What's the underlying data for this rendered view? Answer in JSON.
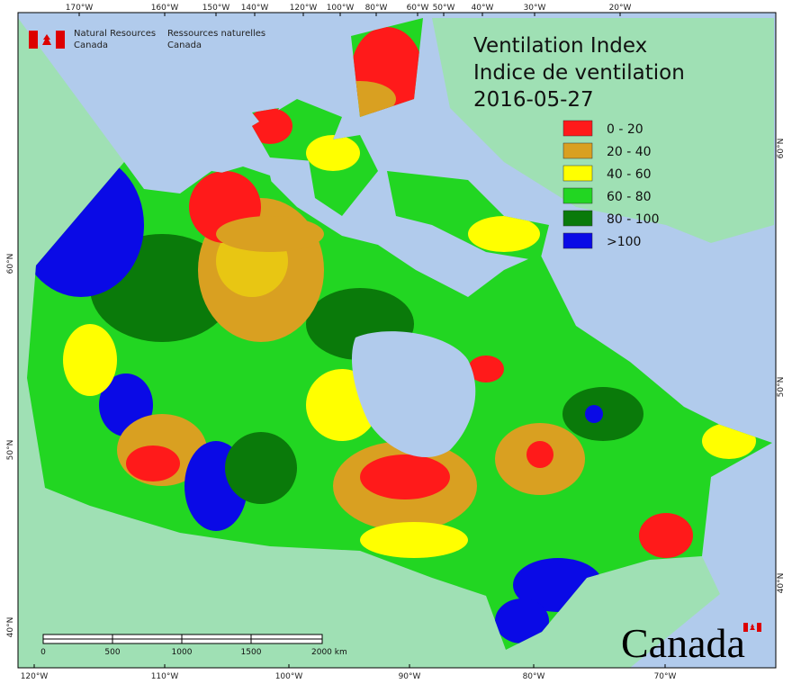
{
  "agency": {
    "en_line1": "Natural Resources",
    "en_line2": "Canada",
    "fr_line1": "Ressources naturelles",
    "fr_line2": "Canada"
  },
  "title": {
    "line1": "Ventilation Index",
    "line2": "Indice de ventilation",
    "date": "2016-05-27"
  },
  "legend": [
    {
      "label": "0 - 20",
      "color": "#ff1a1a"
    },
    {
      "label": "20 - 40",
      "color": "#d9a021"
    },
    {
      "label": "40 - 60",
      "color": "#ffff00"
    },
    {
      "label": "60 - 80",
      "color": "#22d622"
    },
    {
      "label": "80 - 100",
      "color": "#0a7a0a"
    },
    {
      "label": ">100",
      "color": "#0a0ae6"
    }
  ],
  "graticule": {
    "top": [
      "170°W",
      "160°W",
      "150°W",
      "140°W",
      "120°W",
      "100°W",
      "80°W",
      "60°W",
      "50°W",
      "40°W",
      "30°W",
      "20°W"
    ],
    "bottom": [
      "120°W",
      "110°W",
      "100°W",
      "90°W",
      "80°W",
      "70°W"
    ],
    "left": [
      "60°N",
      "50°N",
      "40°N"
    ],
    "right": [
      "60°N",
      "50°N",
      "40°N"
    ]
  },
  "scale_bar": {
    "ticks": [
      "0",
      "500",
      "1000",
      "1500"
    ],
    "end_label": "2000 km"
  },
  "wordmark": "Canada"
}
